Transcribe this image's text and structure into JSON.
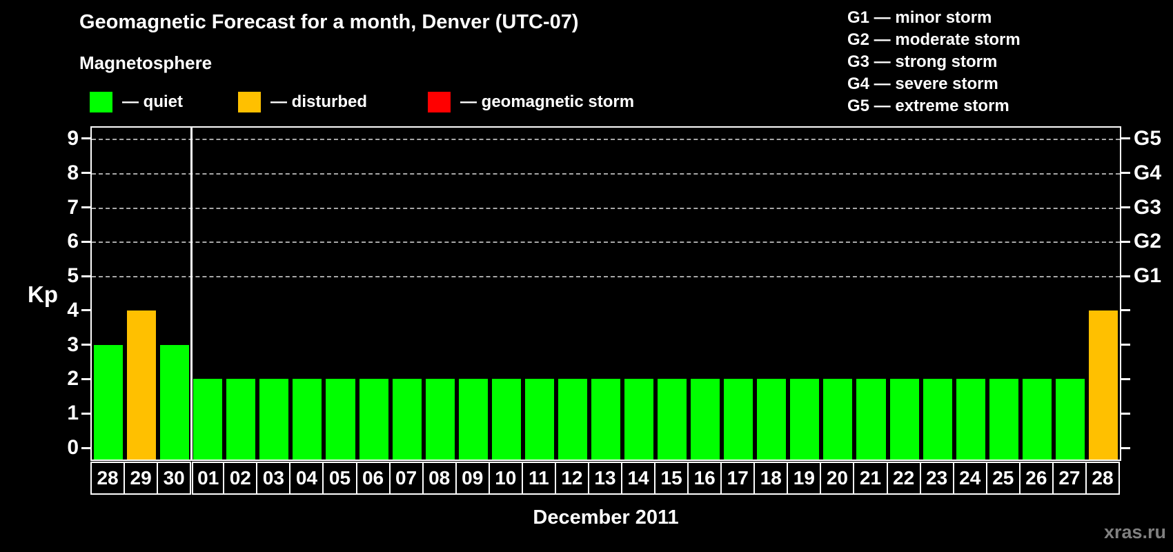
{
  "header": {
    "title": "Geomagnetic Forecast for a month, Denver (UTC-07)"
  },
  "legend": {
    "title": "Magnetosphere",
    "items": [
      {
        "name": "quiet",
        "label": "— quiet",
        "color": "#00ff00"
      },
      {
        "name": "disturbed",
        "label": "— disturbed",
        "color": "#ffc000"
      },
      {
        "name": "geomagnetic-storm",
        "label": "— geomagnetic storm",
        "color": "#ff0000"
      }
    ]
  },
  "g_legend": [
    "G1 — minor storm",
    "G2 — moderate storm",
    "G3 — strong storm",
    "G4 — severe storm",
    "G5 — extreme storm"
  ],
  "chart_data": {
    "type": "bar",
    "title": "Geomagnetic Forecast for a month, Denver (UTC-07)",
    "xlabel": "December 2011",
    "ylabel": "Kp",
    "ylim": [
      0,
      9
    ],
    "y_ticks": [
      0,
      1,
      2,
      3,
      4,
      5,
      6,
      7,
      8,
      9
    ],
    "gridlines_at": [
      5,
      6,
      7,
      8,
      9
    ],
    "grid": "dashed horizontal at storm levels only",
    "legend_position": "top",
    "right_axis_labels": [
      {
        "level": 5,
        "label": "G1"
      },
      {
        "level": 6,
        "label": "G2"
      },
      {
        "level": 7,
        "label": "G3"
      },
      {
        "level": 8,
        "label": "G4"
      },
      {
        "level": 9,
        "label": "G5"
      }
    ],
    "categories": [
      "28",
      "29",
      "30",
      "01",
      "02",
      "03",
      "04",
      "05",
      "06",
      "07",
      "08",
      "09",
      "10",
      "11",
      "12",
      "13",
      "14",
      "15",
      "16",
      "17",
      "18",
      "19",
      "20",
      "21",
      "22",
      "23",
      "24",
      "25",
      "26",
      "27",
      "28"
    ],
    "values": [
      3,
      4,
      3,
      2,
      2,
      2,
      2,
      2,
      2,
      2,
      2,
      2,
      2,
      2,
      2,
      2,
      2,
      2,
      2,
      2,
      2,
      2,
      2,
      2,
      2,
      2,
      2,
      2,
      2,
      2,
      4
    ],
    "bar_states": [
      "quiet",
      "disturbed",
      "quiet",
      "quiet",
      "quiet",
      "quiet",
      "quiet",
      "quiet",
      "quiet",
      "quiet",
      "quiet",
      "quiet",
      "quiet",
      "quiet",
      "quiet",
      "quiet",
      "quiet",
      "quiet",
      "quiet",
      "quiet",
      "quiet",
      "quiet",
      "quiet",
      "quiet",
      "quiet",
      "quiet",
      "quiet",
      "quiet",
      "quiet",
      "quiet",
      "disturbed"
    ],
    "month_separator_after_index": 2
  },
  "footer": {
    "watermark": "xras.ru"
  }
}
